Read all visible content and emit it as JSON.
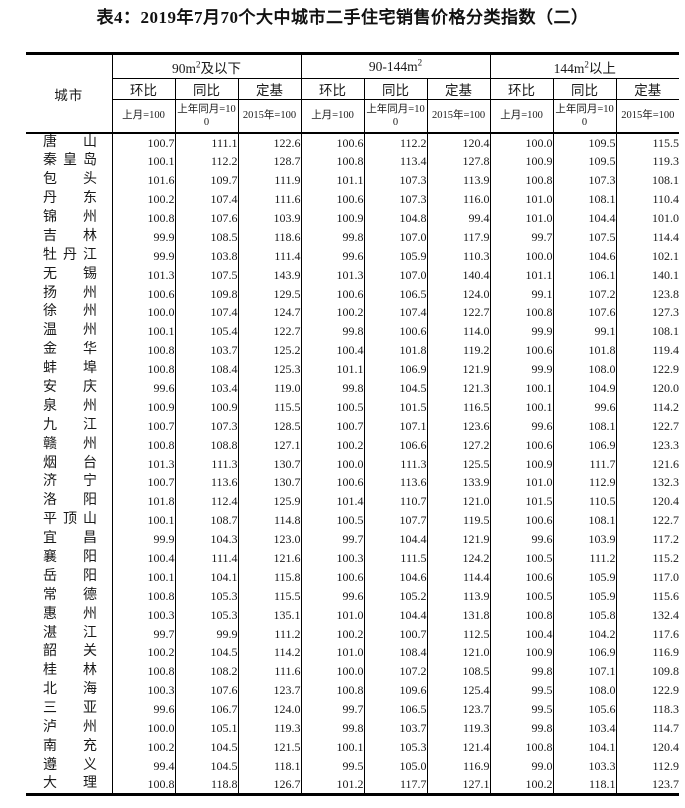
{
  "title": "表4：2019年7月70个大中城市二手住宅销售价格分类指数（二）",
  "colors": {
    "text": "#1a1a1a",
    "border": "#000000",
    "background": "#ffffff"
  },
  "table": {
    "city_header": "城市",
    "groups": [
      {
        "prefix": "90m",
        "sup": "2",
        "suffix": "及以下"
      },
      {
        "prefix": "90-144m",
        "sup": "2",
        "suffix": ""
      },
      {
        "prefix": "144m",
        "sup": "2",
        "suffix": "以上"
      }
    ],
    "sub_headers": [
      "环比",
      "同比",
      "定基"
    ],
    "unit_headers": [
      "上月=100",
      "上年同月=100",
      "2015年=100"
    ],
    "rows": [
      {
        "city": "唐山",
        "values": [
          "100.7",
          "111.1",
          "122.6",
          "100.6",
          "112.2",
          "120.4",
          "100.0",
          "109.5",
          "115.5"
        ]
      },
      {
        "city": "秦皇岛",
        "values": [
          "100.1",
          "112.2",
          "128.7",
          "100.8",
          "113.4",
          "127.8",
          "100.9",
          "109.5",
          "119.3"
        ]
      },
      {
        "city": "包头",
        "values": [
          "101.6",
          "109.7",
          "111.9",
          "101.1",
          "107.3",
          "113.9",
          "100.8",
          "107.3",
          "108.1"
        ]
      },
      {
        "city": "丹东",
        "values": [
          "100.2",
          "107.4",
          "111.6",
          "100.6",
          "107.3",
          "116.0",
          "101.0",
          "108.1",
          "110.4"
        ]
      },
      {
        "city": "锦州",
        "values": [
          "100.8",
          "107.6",
          "103.9",
          "100.9",
          "104.8",
          "99.4",
          "101.0",
          "104.4",
          "101.0"
        ]
      },
      {
        "city": "吉林",
        "values": [
          "99.9",
          "108.5",
          "118.6",
          "99.8",
          "107.0",
          "117.9",
          "99.7",
          "107.5",
          "114.4"
        ]
      },
      {
        "city": "牡丹江",
        "values": [
          "99.9",
          "103.8",
          "111.4",
          "99.6",
          "105.9",
          "110.3",
          "100.0",
          "104.6",
          "102.1"
        ]
      },
      {
        "city": "无锡",
        "values": [
          "101.3",
          "107.5",
          "143.9",
          "101.3",
          "107.0",
          "140.4",
          "101.1",
          "106.1",
          "140.1"
        ]
      },
      {
        "city": "扬州",
        "values": [
          "100.6",
          "109.8",
          "129.5",
          "100.6",
          "106.5",
          "124.0",
          "99.1",
          "107.2",
          "123.8"
        ]
      },
      {
        "city": "徐州",
        "values": [
          "100.0",
          "107.4",
          "124.7",
          "100.2",
          "107.4",
          "122.7",
          "100.8",
          "107.6",
          "127.3"
        ]
      },
      {
        "city": "温州",
        "values": [
          "100.1",
          "105.4",
          "122.7",
          "99.8",
          "100.6",
          "114.0",
          "99.9",
          "99.1",
          "108.1"
        ]
      },
      {
        "city": "金华",
        "values": [
          "100.8",
          "103.7",
          "125.2",
          "100.4",
          "101.8",
          "119.2",
          "100.6",
          "101.8",
          "119.4"
        ]
      },
      {
        "city": "蚌埠",
        "values": [
          "100.8",
          "108.4",
          "125.3",
          "101.1",
          "106.9",
          "121.9",
          "99.9",
          "108.0",
          "122.9"
        ]
      },
      {
        "city": "安庆",
        "values": [
          "99.6",
          "103.4",
          "119.0",
          "99.8",
          "104.5",
          "121.3",
          "100.1",
          "104.9",
          "120.0"
        ]
      },
      {
        "city": "泉州",
        "values": [
          "100.9",
          "100.9",
          "115.5",
          "100.5",
          "101.5",
          "116.5",
          "100.1",
          "99.6",
          "114.2"
        ]
      },
      {
        "city": "九江",
        "values": [
          "100.7",
          "107.3",
          "128.5",
          "100.7",
          "107.1",
          "123.6",
          "99.6",
          "108.1",
          "122.7"
        ]
      },
      {
        "city": "赣州",
        "values": [
          "100.8",
          "108.8",
          "127.1",
          "100.2",
          "106.6",
          "127.2",
          "100.6",
          "106.9",
          "123.3"
        ]
      },
      {
        "city": "烟台",
        "values": [
          "101.3",
          "111.3",
          "130.7",
          "100.0",
          "111.3",
          "125.5",
          "100.9",
          "111.7",
          "121.6"
        ]
      },
      {
        "city": "济宁",
        "values": [
          "100.7",
          "113.6",
          "130.7",
          "100.6",
          "113.6",
          "133.9",
          "101.0",
          "112.9",
          "132.3"
        ]
      },
      {
        "city": "洛阳",
        "values": [
          "101.8",
          "112.4",
          "125.9",
          "101.4",
          "110.7",
          "121.0",
          "101.5",
          "110.5",
          "120.4"
        ]
      },
      {
        "city": "平顶山",
        "values": [
          "100.1",
          "108.7",
          "114.8",
          "100.5",
          "107.7",
          "119.5",
          "100.6",
          "108.1",
          "122.7"
        ]
      },
      {
        "city": "宜昌",
        "values": [
          "99.9",
          "104.3",
          "123.0",
          "99.7",
          "104.4",
          "121.9",
          "99.6",
          "103.9",
          "117.2"
        ]
      },
      {
        "city": "襄阳",
        "values": [
          "100.4",
          "111.4",
          "121.6",
          "100.3",
          "111.5",
          "124.2",
          "100.5",
          "111.2",
          "115.2"
        ]
      },
      {
        "city": "岳阳",
        "values": [
          "100.1",
          "104.1",
          "115.8",
          "100.6",
          "104.6",
          "114.4",
          "100.6",
          "105.9",
          "117.0"
        ]
      },
      {
        "city": "常德",
        "values": [
          "100.8",
          "105.3",
          "115.5",
          "99.6",
          "105.2",
          "113.9",
          "100.5",
          "105.9",
          "115.6"
        ]
      },
      {
        "city": "惠州",
        "values": [
          "100.3",
          "105.3",
          "135.1",
          "101.0",
          "104.4",
          "131.8",
          "100.8",
          "105.8",
          "132.4"
        ]
      },
      {
        "city": "湛江",
        "values": [
          "99.7",
          "99.9",
          "111.2",
          "100.2",
          "100.7",
          "112.5",
          "100.4",
          "104.2",
          "117.6"
        ]
      },
      {
        "city": "韶关",
        "values": [
          "100.2",
          "104.5",
          "114.2",
          "101.0",
          "108.4",
          "121.0",
          "100.9",
          "106.9",
          "116.9"
        ]
      },
      {
        "city": "桂林",
        "values": [
          "100.8",
          "108.2",
          "111.6",
          "100.0",
          "107.2",
          "108.5",
          "99.8",
          "107.1",
          "109.8"
        ]
      },
      {
        "city": "北海",
        "values": [
          "100.3",
          "107.6",
          "123.7",
          "100.8",
          "109.6",
          "125.4",
          "99.5",
          "108.0",
          "122.9"
        ]
      },
      {
        "city": "三亚",
        "values": [
          "99.6",
          "106.7",
          "124.0",
          "99.7",
          "106.5",
          "123.7",
          "99.5",
          "105.6",
          "118.3"
        ]
      },
      {
        "city": "泸州",
        "values": [
          "100.0",
          "105.1",
          "119.3",
          "99.8",
          "103.7",
          "119.3",
          "99.8",
          "103.4",
          "114.7"
        ]
      },
      {
        "city": "南充",
        "values": [
          "100.2",
          "104.5",
          "121.5",
          "100.1",
          "105.3",
          "121.4",
          "100.8",
          "104.1",
          "120.4"
        ]
      },
      {
        "city": "遵义",
        "values": [
          "99.4",
          "104.5",
          "118.1",
          "99.5",
          "105.0",
          "116.9",
          "99.0",
          "103.3",
          "112.9"
        ]
      },
      {
        "city": "大理",
        "values": [
          "100.8",
          "118.8",
          "126.7",
          "101.2",
          "117.7",
          "127.1",
          "100.2",
          "118.1",
          "123.7"
        ]
      }
    ]
  }
}
